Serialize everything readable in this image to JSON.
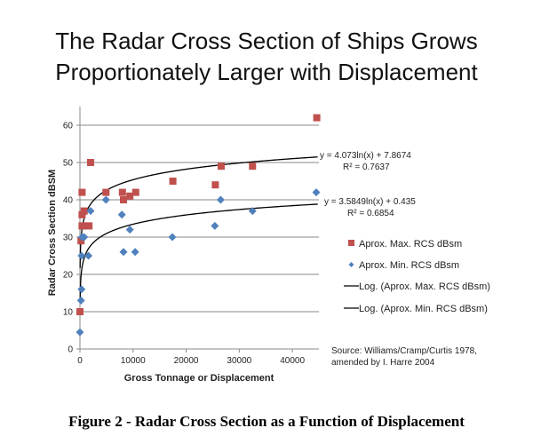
{
  "chart_data": {
    "type": "scatter",
    "title": "The Radar Cross Section of Ships Grows Proportionately Larger with Displacement",
    "title_lines": [
      "The Radar Cross Section of Ships Grows",
      "Proportionately Larger with Displacement"
    ],
    "xlabel": "Gross Tonnage or Displacement",
    "ylabel": "Radar Cross Section dBSM",
    "xlim": [
      0,
      45000
    ],
    "ylim": [
      0,
      65
    ],
    "xticks": [
      0,
      10000,
      20000,
      30000,
      40000
    ],
    "yticks": [
      0,
      10,
      20,
      30,
      40,
      50,
      60
    ],
    "grid": "horizontal",
    "legend_position": "right",
    "series": [
      {
        "name": "Aprox. Max. RCS dBsm",
        "marker": "square",
        "color": "#c0504d",
        "x": [
          0,
          200,
          400,
          400,
          400,
          800,
          1100,
          1700,
          2000,
          4900,
          8000,
          8200,
          9400,
          10500,
          17500,
          25500,
          26600,
          32500,
          44600
        ],
        "y": [
          10,
          29,
          42,
          36,
          33,
          37,
          33,
          33,
          50,
          42,
          42,
          40,
          41,
          42,
          45,
          44,
          49,
          49,
          62
        ]
      },
      {
        "name": "Aprox. Min. RCS dBsm",
        "marker": "diamond",
        "color": "#4f81bd",
        "x": [
          0,
          200,
          300,
          300,
          400,
          800,
          1600,
          2000,
          4900,
          7900,
          8200,
          9400,
          10400,
          17400,
          25400,
          26500,
          32500,
          44500
        ],
        "y": [
          4.5,
          13,
          16,
          25,
          30,
          30,
          25,
          37,
          40,
          36,
          26,
          32,
          26,
          30,
          33,
          40,
          37,
          42
        ]
      }
    ],
    "trendlines": [
      {
        "name": "Log. (Aprox. Max. RCS dBsm)",
        "type": "log",
        "a": 4.073,
        "b": 7.8674,
        "color": "#000000",
        "equation": "y = 4.073ln(x) + 7.8674",
        "r2": "R² = 0.7637"
      },
      {
        "name": "Log. (Aprox. Min. RCS dBsm)",
        "type": "log",
        "a": 3.5849,
        "b": 0.435,
        "color": "#000000",
        "equation": "y = 3.5849ln(x) + 0.435",
        "r2": "R² = 0.6854"
      }
    ],
    "source_lines": [
      "Source:  Williams/Cramp/Curtis   1978,",
      "amended  by I. Harre  2004"
    ]
  },
  "caption": "Figure 2 - Radar Cross Section as a Function of Displacement"
}
